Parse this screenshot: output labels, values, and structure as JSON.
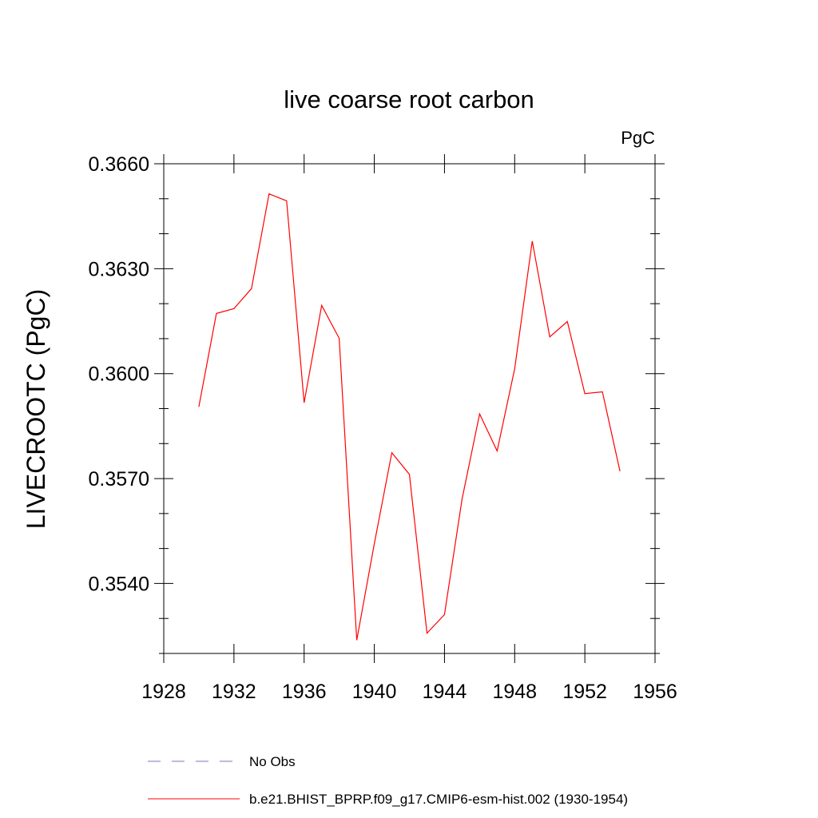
{
  "chart_data": {
    "type": "line",
    "title": "live coarse root carbon",
    "units_label": "PgC",
    "ylabel": "LIVECROOTC  (PgC)",
    "xlabel": "",
    "xlim": [
      1928,
      1956
    ],
    "ylim": [
      0.352,
      0.366
    ],
    "x_ticks": [
      1928,
      1932,
      1936,
      1940,
      1944,
      1948,
      1952,
      1956
    ],
    "x_tick_labels": [
      "1928",
      "1932",
      "1936",
      "1940",
      "1944",
      "1948",
      "1952",
      "1956"
    ],
    "y_ticks": [
      0.354,
      0.357,
      0.36,
      0.363,
      0.366
    ],
    "y_tick_labels": [
      "0.3540",
      "0.3570",
      "0.3600",
      "0.3630",
      "0.3660"
    ],
    "grid": false,
    "legend_position": "bottom",
    "series": [
      {
        "name": "No Obs",
        "color": "#7b74c4",
        "style": "dashed",
        "x": [],
        "y": []
      },
      {
        "name": "b.e21.BHIST_BPRP.f09_g17.CMIP6-esm-hist.002 (1930-1954)",
        "color": "#ff0000",
        "style": "solid",
        "x": [
          1930,
          1931,
          1932,
          1933,
          1934,
          1935,
          1936,
          1937,
          1938,
          1939,
          1940,
          1941,
          1942,
          1943,
          1944,
          1945,
          1946,
          1947,
          1948,
          1949,
          1950,
          1951,
          1952,
          1953,
          1954
        ],
        "y": [
          0.35905,
          0.36172,
          0.36186,
          0.36243,
          0.36514,
          0.36494,
          0.35917,
          0.36195,
          0.36101,
          0.35238,
          0.35514,
          0.35774,
          0.35712,
          0.35258,
          0.35311,
          0.35641,
          0.35885,
          0.35779,
          0.36014,
          0.36379,
          0.36105,
          0.36149,
          0.35943,
          0.35948,
          0.35721
        ]
      }
    ]
  }
}
